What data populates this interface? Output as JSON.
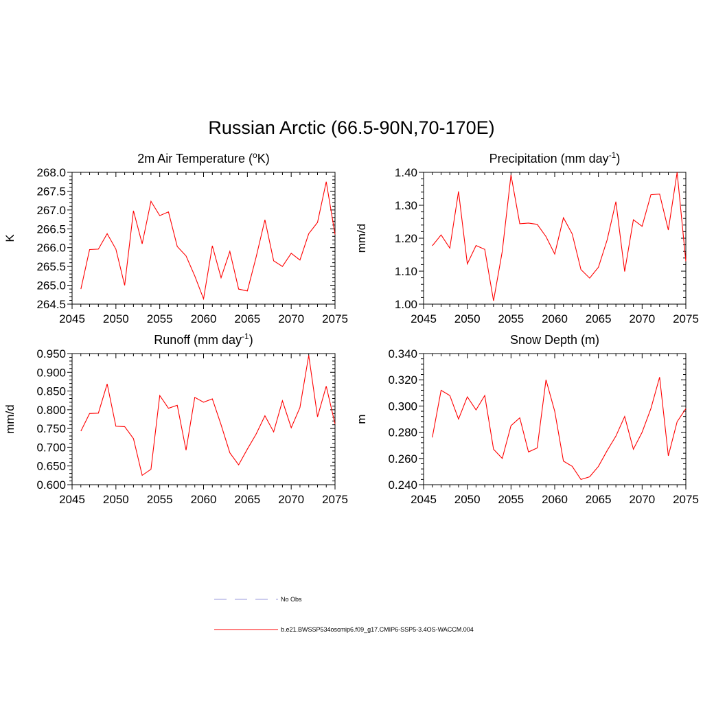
{
  "figure_title": "Russian Arctic (66.5-90N,70-170E)",
  "legend": [
    {
      "label": "No Obs",
      "color": "#9999dd",
      "style": "dashed"
    },
    {
      "label": "b.e21.BWSSP534oscmip6.f09_g17.CMIP6-SSP5-3.4OS-WACCM.004",
      "color": "#ff0000",
      "style": "solid"
    }
  ],
  "chart_data": [
    {
      "type": "line",
      "title": "2m Air Temperature (",
      "title_sup": "o",
      "title_end": "K)",
      "ylabel": "K",
      "xlim": [
        2045,
        2075
      ],
      "ylim": [
        264.5,
        268.0
      ],
      "xticks": [
        "2045",
        "2050",
        "2055",
        "2060",
        "2065",
        "2070",
        "2075"
      ],
      "yticks": [
        "264.5",
        "265.0",
        "265.5",
        "266.0",
        "266.5",
        "267.0",
        "267.5",
        "268.0"
      ],
      "color": "#ff0000",
      "x": [
        2046,
        2047,
        2048,
        2049,
        2050,
        2051,
        2052,
        2053,
        2054,
        2055,
        2056,
        2057,
        2058,
        2059,
        2060,
        2061,
        2062,
        2063,
        2064,
        2065,
        2066,
        2067,
        2068,
        2069,
        2070,
        2071,
        2072,
        2073,
        2074,
        2075
      ],
      "values": [
        264.9,
        265.95,
        265.96,
        266.37,
        265.96,
        265.0,
        266.98,
        266.1,
        267.23,
        266.85,
        266.95,
        266.03,
        265.78,
        265.25,
        264.64,
        266.05,
        265.2,
        265.9,
        264.9,
        264.85,
        265.75,
        266.74,
        265.65,
        265.5,
        265.85,
        265.67,
        266.37,
        266.67,
        267.75,
        266.35
      ]
    },
    {
      "type": "line",
      "title": "Precipitation (mm day",
      "title_sup": "-1",
      "title_end": ")",
      "ylabel": "mm/d",
      "xlim": [
        2045,
        2075
      ],
      "ylim": [
        1.0,
        1.4
      ],
      "xticks": [
        "2045",
        "2050",
        "2055",
        "2060",
        "2065",
        "2070",
        "2075"
      ],
      "yticks": [
        "1.00",
        "1.10",
        "1.20",
        "1.30",
        "1.40"
      ],
      "color": "#ff0000",
      "x": [
        2046,
        2047,
        2048,
        2049,
        2050,
        2051,
        2052,
        2053,
        2054,
        2055,
        2056,
        2057,
        2058,
        2059,
        2060,
        2061,
        2062,
        2063,
        2064,
        2065,
        2066,
        2067,
        2068,
        2069,
        2070,
        2071,
        2072,
        2073,
        2074,
        2075
      ],
      "values": [
        1.177,
        1.21,
        1.17,
        1.342,
        1.122,
        1.178,
        1.166,
        1.01,
        1.16,
        1.392,
        1.244,
        1.246,
        1.242,
        1.205,
        1.152,
        1.262,
        1.213,
        1.105,
        1.079,
        1.112,
        1.195,
        1.311,
        1.099,
        1.256,
        1.236,
        1.332,
        1.334,
        1.225,
        1.4,
        1.13
      ]
    },
    {
      "type": "line",
      "title": "Runoff (mm day",
      "title_sup": "-1",
      "title_end": ")",
      "ylabel": "mm/d",
      "xlim": [
        2045,
        2075
      ],
      "ylim": [
        0.6,
        0.95
      ],
      "xticks": [
        "2045",
        "2050",
        "2055",
        "2060",
        "2065",
        "2070",
        "2075"
      ],
      "yticks": [
        "0.600",
        "0.650",
        "0.700",
        "0.750",
        "0.800",
        "0.850",
        "0.900",
        "0.950"
      ],
      "color": "#ff0000",
      "x": [
        2046,
        2047,
        2048,
        2049,
        2050,
        2051,
        2052,
        2053,
        2054,
        2055,
        2056,
        2057,
        2058,
        2059,
        2060,
        2061,
        2062,
        2063,
        2064,
        2065,
        2066,
        2067,
        2068,
        2069,
        2070,
        2071,
        2072,
        2073,
        2074,
        2075
      ],
      "values": [
        0.743,
        0.79,
        0.791,
        0.869,
        0.756,
        0.755,
        0.723,
        0.625,
        0.641,
        0.838,
        0.804,
        0.812,
        0.692,
        0.833,
        0.82,
        0.829,
        0.76,
        0.685,
        0.653,
        0.695,
        0.735,
        0.784,
        0.741,
        0.824,
        0.752,
        0.806,
        0.945,
        0.781,
        0.863,
        0.762
      ]
    },
    {
      "type": "line",
      "title": "Snow Depth (m)",
      "title_sup": "",
      "title_end": "",
      "ylabel": "m",
      "xlim": [
        2045,
        2075
      ],
      "ylim": [
        0.24,
        0.34
      ],
      "xticks": [
        "2045",
        "2050",
        "2055",
        "2060",
        "2065",
        "2070",
        "2075"
      ],
      "yticks": [
        "0.240",
        "0.260",
        "0.280",
        "0.300",
        "0.320",
        "0.340"
      ],
      "color": "#ff0000",
      "x": [
        2046,
        2047,
        2048,
        2049,
        2050,
        2051,
        2052,
        2053,
        2054,
        2055,
        2056,
        2057,
        2058,
        2059,
        2060,
        2061,
        2062,
        2063,
        2064,
        2065,
        2066,
        2067,
        2068,
        2069,
        2070,
        2071,
        2072,
        2073,
        2074,
        2075
      ],
      "values": [
        0.276,
        0.312,
        0.308,
        0.29,
        0.307,
        0.297,
        0.308,
        0.267,
        0.26,
        0.285,
        0.291,
        0.265,
        0.268,
        0.32,
        0.296,
        0.258,
        0.254,
        0.244,
        0.246,
        0.254,
        0.266,
        0.277,
        0.292,
        0.267,
        0.28,
        0.298,
        0.322,
        0.262,
        0.288,
        0.298
      ]
    }
  ]
}
